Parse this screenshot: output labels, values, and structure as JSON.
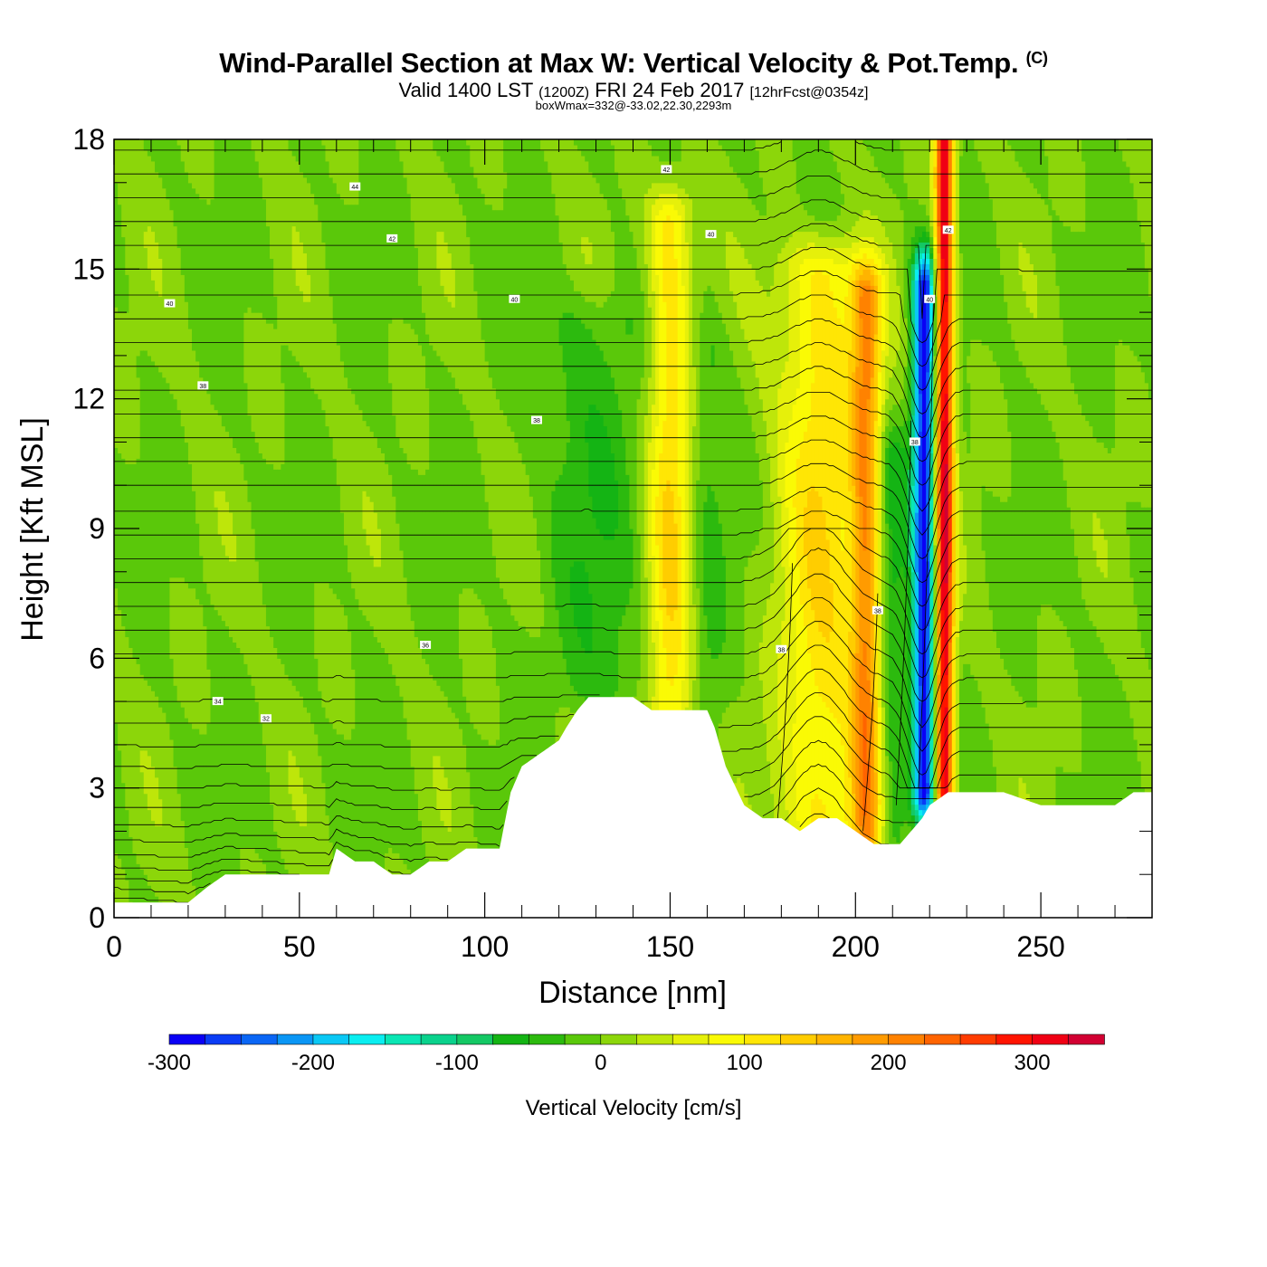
{
  "header": {
    "title": "Wind-Parallel Section at Max W: Vertical Velocity & Pot.Temp.",
    "copyright_mark": "(C)",
    "valid_prefix": "Valid 1400 LST",
    "valid_utc": "(1200Z)",
    "valid_date": "FRI 24 Feb 2017",
    "forecast": "[12hrFcst@0354z]",
    "box_w_max": "boxWmax=332@-33.02,22.30,2293m"
  },
  "chart_data": {
    "type": "heatmap",
    "title": "Wind-Parallel Section at Max W: Vertical Velocity & Pot.Temp.",
    "xlabel": "Distance [nm]",
    "ylabel": "Height [Kft MSL]",
    "xlim": [
      0,
      280
    ],
    "ylim": [
      0,
      18
    ],
    "x_ticks": [
      "0",
      "50",
      "100",
      "150",
      "200",
      "250"
    ],
    "y_ticks": [
      "0",
      "3",
      "6",
      "9",
      "12",
      "15",
      "18"
    ],
    "colorbar": {
      "title": "Vertical Velocity [cm/s]",
      "tick_labels": [
        "-300",
        "-200",
        "-100",
        "0",
        "100",
        "200",
        "300"
      ],
      "min": -300,
      "max": 350,
      "step": 25,
      "colors": [
        "#0a00f5",
        "#0a3cf5",
        "#0a66f5",
        "#0a96f5",
        "#0ac8f5",
        "#0aeef0",
        "#0ae6b4",
        "#0ad28c",
        "#14c864",
        "#14b414",
        "#2cba0e",
        "#5ac80a",
        "#8cd60a",
        "#bee60a",
        "#e6f00a",
        "#fafa05",
        "#ffe605",
        "#ffcd00",
        "#ffb400",
        "#ff9b00",
        "#ff8200",
        "#ff6400",
        "#ff3c00",
        "#ff1400",
        "#f00014",
        "#d20032"
      ]
    },
    "vertical_velocity_features": [
      {
        "x": 150,
        "width": 6,
        "z_bottom": 4.8,
        "z_top": 16.0,
        "w": 120
      },
      {
        "x": 191,
        "width": 12,
        "z_bottom": 2.3,
        "z_top": 14.8,
        "w": 115
      },
      {
        "x": 203,
        "width": 4,
        "z_bottom": 2.0,
        "z_top": 14.2,
        "w": 170
      },
      {
        "x": 218.5,
        "width": 3,
        "z_bottom": 3.0,
        "z_top": 14.5,
        "w": -290
      },
      {
        "x": 224,
        "width": 2.5,
        "z_bottom": 3.0,
        "z_top": 18,
        "w": 330
      },
      {
        "x": 130,
        "width": 14,
        "z_bottom": 5.5,
        "z_top": 13.5,
        "w": -40
      },
      {
        "x": 210,
        "width": 4,
        "z_bottom": 2.0,
        "z_top": 10.5,
        "w": -60
      },
      {
        "x": 160,
        "width": 5,
        "z_bottom": 3.0,
        "z_top": 13.0,
        "w": -30
      }
    ],
    "terrain": {
      "x": [
        0,
        5,
        10,
        15,
        20,
        25,
        30,
        35,
        40,
        45,
        50,
        55,
        58,
        60,
        65,
        70,
        75,
        80,
        85,
        90,
        95,
        100,
        104,
        107,
        110,
        115,
        120,
        122,
        125,
        128,
        132,
        137,
        140,
        145,
        150,
        155,
        160,
        162,
        165,
        170,
        175,
        180,
        185,
        190,
        195,
        200,
        205,
        210,
        212,
        215,
        218,
        220,
        225,
        230,
        240,
        250,
        260,
        270,
        275,
        280
      ],
      "height": [
        0.35,
        0.35,
        0.35,
        0.35,
        0.35,
        0.7,
        1.0,
        1.0,
        1.0,
        1.0,
        1.0,
        1.0,
        1.0,
        1.6,
        1.3,
        1.3,
        1.0,
        1.0,
        1.3,
        1.3,
        1.6,
        1.6,
        1.6,
        2.9,
        3.5,
        3.8,
        4.1,
        4.4,
        4.8,
        5.1,
        5.1,
        5.1,
        5.1,
        4.8,
        4.8,
        4.8,
        4.8,
        4.4,
        3.5,
        2.6,
        2.3,
        2.3,
        2.0,
        2.3,
        2.3,
        2.0,
        1.7,
        1.7,
        1.7,
        2.0,
        2.3,
        2.6,
        2.9,
        2.9,
        2.9,
        2.6,
        2.6,
        2.6,
        2.9,
        2.9
      ]
    },
    "pot_temp_contour_labels": [
      {
        "label": "44",
        "x": 65,
        "z": 16.9
      },
      {
        "label": "42",
        "x": 75,
        "z": 15.7
      },
      {
        "label": "40",
        "x": 15,
        "z": 14.2
      },
      {
        "label": "40",
        "x": 108,
        "z": 14.3
      },
      {
        "label": "42",
        "x": 149,
        "z": 17.3
      },
      {
        "label": "40",
        "x": 161,
        "z": 15.8
      },
      {
        "label": "38",
        "x": 24,
        "z": 12.3
      },
      {
        "label": "38",
        "x": 114,
        "z": 11.5
      },
      {
        "label": "36",
        "x": 84,
        "z": 6.3
      },
      {
        "label": "34",
        "x": 28,
        "z": 5.0
      },
      {
        "label": "32",
        "x": 41,
        "z": 4.6
      },
      {
        "label": "42",
        "x": 225,
        "z": 15.9
      },
      {
        "label": "40",
        "x": 220,
        "z": 14.3
      },
      {
        "label": "38",
        "x": 216,
        "z": 11.0
      },
      {
        "label": "38",
        "x": 206,
        "z": 7.1
      },
      {
        "label": "38",
        "x": 180,
        "z": 6.2
      }
    ]
  }
}
